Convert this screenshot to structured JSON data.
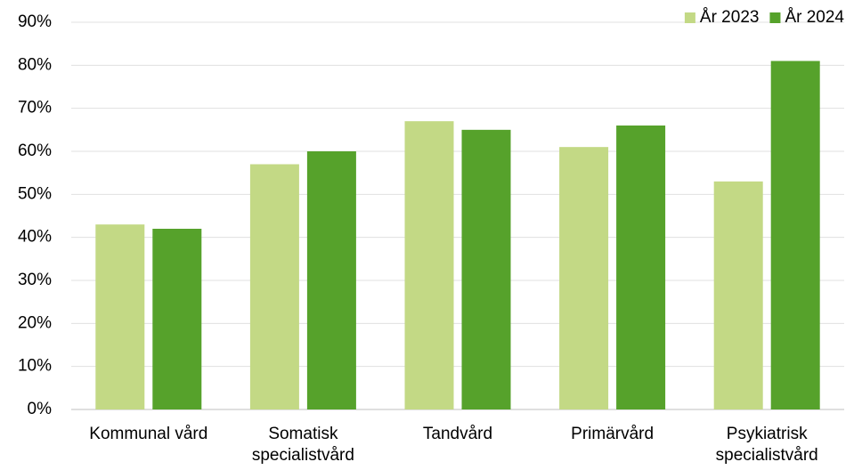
{
  "chart_data": {
    "type": "bar",
    "categories": [
      "Kommunal vård",
      "Somatisk specialistvård",
      "Tandvård",
      "Primärvård",
      "Psykiatrisk specialistvård"
    ],
    "series": [
      {
        "name": "År 2023",
        "color": "#c3d985",
        "values": [
          43,
          57,
          67,
          61,
          53
        ]
      },
      {
        "name": "År 2024",
        "color": "#56a22b",
        "values": [
          42,
          60,
          65,
          66,
          81
        ]
      }
    ],
    "ylim": [
      0,
      90
    ],
    "yticks": [
      {
        "value": 0,
        "label": "0%"
      },
      {
        "value": 10,
        "label": "10%"
      },
      {
        "value": 20,
        "label": "20%"
      },
      {
        "value": 30,
        "label": "30%"
      },
      {
        "value": 40,
        "label": "40%"
      },
      {
        "value": 50,
        "label": "50%"
      },
      {
        "value": 60,
        "label": "60%"
      },
      {
        "value": 70,
        "label": "70%"
      },
      {
        "value": 80,
        "label": "80%"
      },
      {
        "value": 90,
        "label": "90%"
      }
    ],
    "grid": true,
    "legend": "top-right"
  }
}
